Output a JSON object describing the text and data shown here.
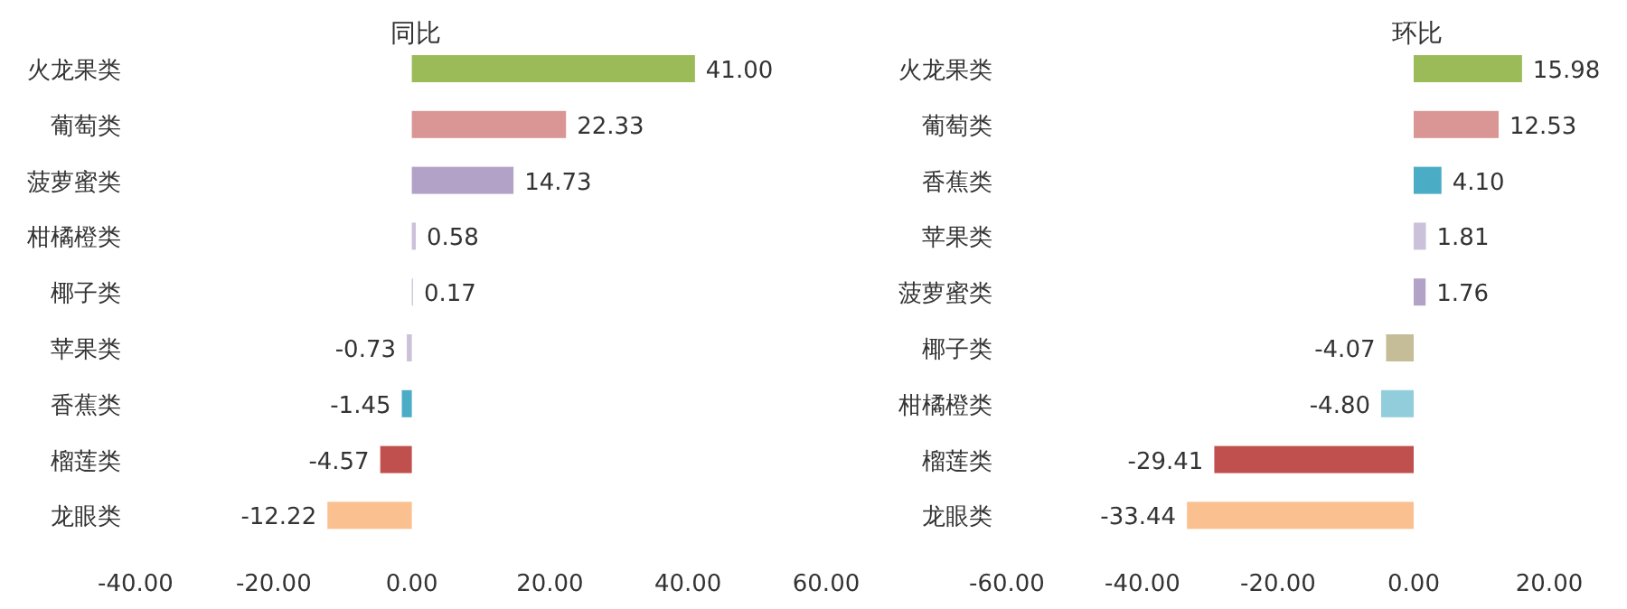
{
  "chart_data": [
    {
      "type": "bar",
      "orientation": "horizontal",
      "title": "同比",
      "categories": [
        "火龙果类",
        "葡萄类",
        "菠萝蜜类",
        "柑橘橙类",
        "椰子类",
        "苹果类",
        "香蕉类",
        "榴莲类",
        "龙眼类"
      ],
      "values": [
        41.0,
        22.33,
        14.73,
        0.58,
        0.17,
        -0.73,
        -1.45,
        -4.57,
        -12.22
      ],
      "value_labels": [
        "41.00",
        "22.33",
        "14.73",
        "0.58",
        "0.17",
        "-0.73",
        "-1.45",
        "-4.57",
        "-12.22"
      ],
      "colors": [
        "#9bbb59",
        "#d99694",
        "#b3a2c7",
        "#ccc1da",
        "#ccc1da",
        "#ccc1da",
        "#4bacc6",
        "#c0504d",
        "#fac090"
      ],
      "xlim": [
        -40,
        60
      ],
      "xticks": [
        {
          "value": -40,
          "label": "-40.00"
        },
        {
          "value": -20,
          "label": "-20.00"
        },
        {
          "value": 0,
          "label": "0.00"
        },
        {
          "value": 20,
          "label": "20.00"
        },
        {
          "value": 40,
          "label": "40.00"
        },
        {
          "value": 60,
          "label": "60.00"
        }
      ]
    },
    {
      "type": "bar",
      "orientation": "horizontal",
      "title": "环比",
      "categories": [
        "火龙果类",
        "葡萄类",
        "香蕉类",
        "苹果类",
        "菠萝蜜类",
        "椰子类",
        "柑橘橙类",
        "榴莲类",
        "龙眼类"
      ],
      "values": [
        15.98,
        12.53,
        4.1,
        1.81,
        1.76,
        -4.07,
        -4.8,
        -29.41,
        -33.44
      ],
      "value_labels": [
        "15.98",
        "12.53",
        "4.10",
        "1.81",
        "1.76",
        "-4.07",
        "-4.80",
        "-29.41",
        "-33.44"
      ],
      "colors": [
        "#9bbb59",
        "#d99694",
        "#4bacc6",
        "#ccc1da",
        "#b3a2c7",
        "#c4bd97",
        "#92cddc",
        "#c0504d",
        "#fac090"
      ],
      "xlim": [
        -60,
        20
      ],
      "xticks": [
        {
          "value": -60,
          "label": "-60.00"
        },
        {
          "value": -40,
          "label": "-40.00"
        },
        {
          "value": -20,
          "label": "-20.00"
        },
        {
          "value": 0,
          "label": "0.00"
        },
        {
          "value": 20,
          "label": "20.00"
        }
      ]
    }
  ]
}
